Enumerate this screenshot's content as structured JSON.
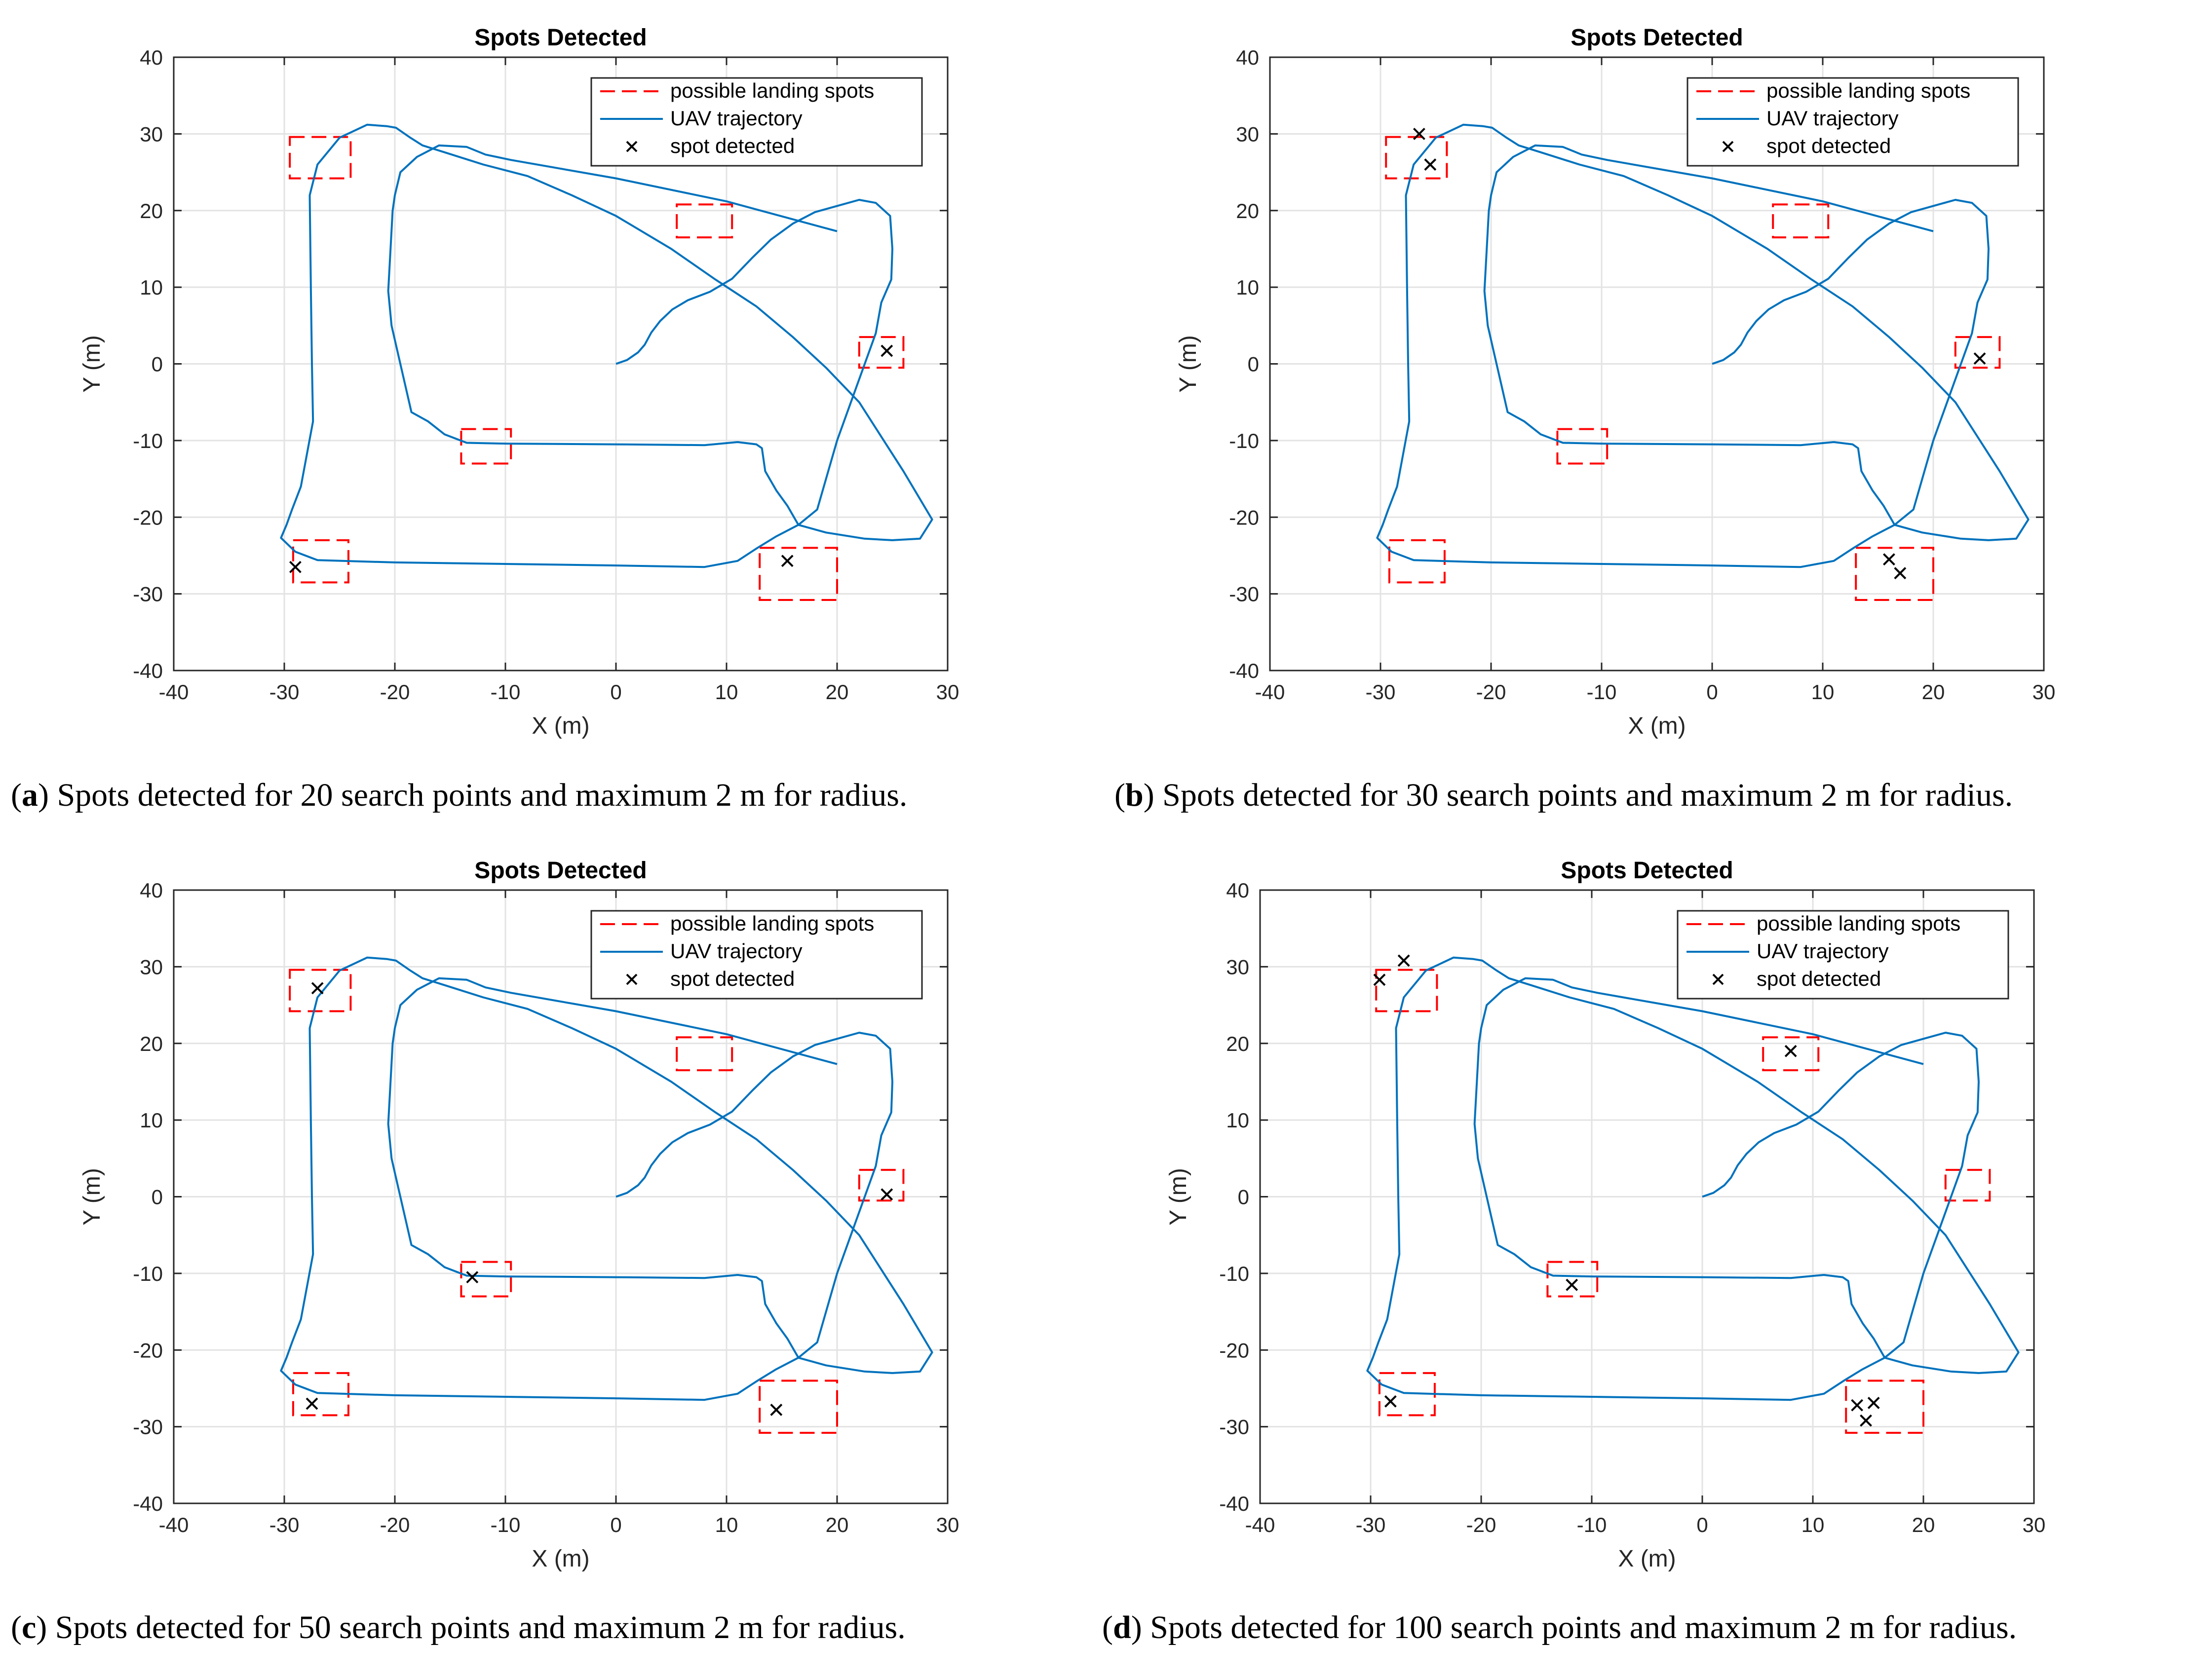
{
  "chart_data": [
    {
      "type": "line",
      "title": "Spots Detected",
      "xlabel": "X (m)",
      "ylabel": "Y (m)",
      "xlim": [
        -40,
        30
      ],
      "ylim": [
        -40,
        40
      ],
      "xticks": [
        -40,
        -30,
        -20,
        -10,
        0,
        10,
        20,
        30
      ],
      "yticks": [
        -40,
        -30,
        -20,
        -10,
        0,
        10,
        20,
        30,
        40
      ],
      "grid": true,
      "legend_position": "top-right",
      "legend": [
        "possible landing spots",
        "UAV trajectory",
        "spot detected"
      ],
      "series": [
        {
          "name": "possible landing spots",
          "kind": "rectangles",
          "color": "#ff0000"
        },
        {
          "name": "UAV trajectory",
          "kind": "line",
          "color": "#0072bd"
        },
        {
          "name": "spot detected",
          "kind": "markers",
          "color": "#000000",
          "points": [
            [
              -29,
              -26.5
            ],
            [
              24.5,
              1.7
            ],
            [
              15.5,
              -25.7
            ]
          ]
        }
      ],
      "caption_label": "a",
      "caption_text": "Spots detected for 20 search points and maximum 2 m for radius."
    },
    {
      "type": "line",
      "title": "Spots Detected",
      "xlabel": "X (m)",
      "ylabel": "Y (m)",
      "xlim": [
        -40,
        30
      ],
      "ylim": [
        -40,
        40
      ],
      "xticks": [
        -40,
        -30,
        -20,
        -10,
        0,
        10,
        20,
        30
      ],
      "yticks": [
        -40,
        -30,
        -20,
        -10,
        0,
        10,
        20,
        30,
        40
      ],
      "grid": true,
      "legend_position": "top-right",
      "legend": [
        "possible landing spots",
        "UAV trajectory",
        "spot detected"
      ],
      "series": [
        {
          "name": "possible landing spots",
          "kind": "rectangles",
          "color": "#ff0000"
        },
        {
          "name": "UAV trajectory",
          "kind": "line",
          "color": "#0072bd"
        },
        {
          "name": "spot detected",
          "kind": "markers",
          "color": "#000000",
          "points": [
            [
              -26.5,
              30
            ],
            [
              -25.5,
              26
            ],
            [
              24.2,
              0.7
            ],
            [
              16,
              -25.5
            ],
            [
              17,
              -27.3
            ]
          ]
        }
      ],
      "caption_label": "b",
      "caption_text": "Spots detected for 30 search points and maximum 2 m for radius."
    },
    {
      "type": "line",
      "title": "Spots Detected",
      "xlabel": "X (m)",
      "ylabel": "Y (m)",
      "xlim": [
        -40,
        30
      ],
      "ylim": [
        -40,
        40
      ],
      "xticks": [
        -40,
        -30,
        -20,
        -10,
        0,
        10,
        20,
        30
      ],
      "yticks": [
        -40,
        -30,
        -20,
        -10,
        0,
        10,
        20,
        30,
        40
      ],
      "grid": true,
      "legend_position": "top-right",
      "legend": [
        "possible landing spots",
        "UAV trajectory",
        "spot detected"
      ],
      "series": [
        {
          "name": "possible landing spots",
          "kind": "rectangles",
          "color": "#ff0000"
        },
        {
          "name": "UAV trajectory",
          "kind": "line",
          "color": "#0072bd"
        },
        {
          "name": "spot detected",
          "kind": "markers",
          "color": "#000000",
          "points": [
            [
              -27,
              27.2
            ],
            [
              -13,
              -10.5
            ],
            [
              24.5,
              0.3
            ],
            [
              -27.5,
              -27
            ],
            [
              14.5,
              -27.8
            ]
          ]
        }
      ],
      "caption_label": "c",
      "caption_text": "Spots detected for 50 search points and maximum 2 m for radius."
    },
    {
      "type": "line",
      "title": "Spots Detected",
      "xlabel": "X (m)",
      "ylabel": "Y (m)",
      "xlim": [
        -40,
        30
      ],
      "ylim": [
        -40,
        40
      ],
      "xticks": [
        -40,
        -30,
        -20,
        -10,
        0,
        10,
        20,
        30
      ],
      "yticks": [
        -40,
        -30,
        -20,
        -10,
        0,
        10,
        20,
        30,
        40
      ],
      "grid": true,
      "legend_position": "top-right",
      "legend": [
        "possible landing spots",
        "UAV trajectory",
        "spot detected"
      ],
      "series": [
        {
          "name": "possible landing spots",
          "kind": "rectangles",
          "color": "#ff0000"
        },
        {
          "name": "UAV trajectory",
          "kind": "line",
          "color": "#0072bd"
        },
        {
          "name": "spot detected",
          "kind": "markers",
          "color": "#000000",
          "points": [
            [
              -29.2,
              28.3
            ],
            [
              -27,
              30.8
            ],
            [
              8,
              19
            ],
            [
              -11.8,
              -11.5
            ],
            [
              -28.2,
              -26.7
            ],
            [
              14,
              -27.2
            ],
            [
              15.5,
              -26.9
            ],
            [
              14.8,
              -29.2
            ]
          ]
        }
      ],
      "caption_label": "d",
      "caption_text": "Spots detected for 100 search points and maximum 2 m for radius."
    }
  ],
  "landing_spots": [
    {
      "xmin": -29.5,
      "xmax": -24,
      "ymin": 24.2,
      "ymax": 29.6
    },
    {
      "xmin": 5.5,
      "xmax": 10.5,
      "ymin": 16.5,
      "ymax": 20.8
    },
    {
      "xmin": 22,
      "xmax": 26,
      "ymin": -0.5,
      "ymax": 3.5
    },
    {
      "xmin": -14,
      "xmax": -9.5,
      "ymin": -13,
      "ymax": -8.5
    },
    {
      "xmin": -29.2,
      "xmax": -24.2,
      "ymin": -28.5,
      "ymax": -23
    },
    {
      "xmin": 13,
      "xmax": 20,
      "ymin": -30.8,
      "ymax": -24
    }
  ],
  "trajectory": [
    [
      0,
      0
    ],
    [
      1,
      0.5
    ],
    [
      2,
      1.5
    ],
    [
      2.6,
      2.5
    ],
    [
      3.2,
      4.1
    ],
    [
      4,
      5.6
    ],
    [
      5.1,
      7.1
    ],
    [
      6.5,
      8.3
    ],
    [
      8.5,
      9.4
    ],
    [
      10.5,
      11.1
    ],
    [
      12.3,
      13.8
    ],
    [
      14,
      16.2
    ],
    [
      16,
      18.3
    ],
    [
      18,
      19.8
    ],
    [
      20,
      20.6
    ],
    [
      22,
      21.4
    ],
    [
      23.5,
      21
    ],
    [
      24.8,
      19.3
    ],
    [
      25,
      15
    ],
    [
      24.9,
      11
    ],
    [
      24,
      8
    ],
    [
      23.5,
      4
    ],
    [
      21.5,
      -4
    ],
    [
      20,
      -10
    ],
    [
      19,
      -15
    ],
    [
      18.2,
      -19
    ],
    [
      16.5,
      -21
    ],
    [
      14.5,
      -22.5
    ],
    [
      12.8,
      -24
    ],
    [
      11,
      -25.7
    ],
    [
      8,
      -26.5
    ],
    [
      0,
      -26.3
    ],
    [
      -10,
      -26.1
    ],
    [
      -20,
      -25.9
    ],
    [
      -27,
      -25.6
    ],
    [
      -29,
      -24.5
    ],
    [
      -30.3,
      -22.7
    ],
    [
      -29.8,
      -21
    ],
    [
      -29.3,
      -19
    ],
    [
      -28.5,
      -16
    ],
    [
      -27.4,
      -7.5
    ],
    [
      -27.5,
      0
    ],
    [
      -27.6,
      10
    ],
    [
      -27.7,
      22
    ],
    [
      -27,
      26
    ],
    [
      -25,
      29.5
    ],
    [
      -22.5,
      31.2
    ],
    [
      -20.7,
      31
    ],
    [
      -19.9,
      30.8
    ],
    [
      -18.6,
      29.5
    ],
    [
      -17.5,
      28.5
    ],
    [
      -15.5,
      27.6
    ],
    [
      -12,
      26
    ],
    [
      -8,
      24.5
    ],
    [
      -4,
      22
    ],
    [
      0,
      19.3
    ],
    [
      5,
      15
    ],
    [
      9,
      11
    ],
    [
      12.7,
      7.5
    ],
    [
      16,
      3.5
    ],
    [
      19,
      -0.5
    ],
    [
      22,
      -5
    ],
    [
      26,
      -14
    ],
    [
      28.6,
      -20.3
    ],
    [
      27.5,
      -22.8
    ],
    [
      25,
      -23
    ],
    [
      22.5,
      -22.8
    ],
    [
      19,
      -22
    ],
    [
      16.5,
      -21
    ],
    [
      15.5,
      -18.5
    ],
    [
      14.5,
      -16.5
    ],
    [
      13.5,
      -14
    ],
    [
      13.2,
      -11
    ],
    [
      12.7,
      -10.5
    ],
    [
      11,
      -10.2
    ],
    [
      8,
      -10.6
    ],
    [
      0,
      -10.5
    ],
    [
      -10,
      -10.4
    ],
    [
      -13.5,
      -10.3
    ],
    [
      -15.5,
      -9.2
    ],
    [
      -17,
      -7.5
    ],
    [
      -18.5,
      -6.3
    ],
    [
      -20.3,
      5
    ],
    [
      -20.6,
      9.5
    ],
    [
      -20.2,
      20
    ],
    [
      -20,
      22
    ],
    [
      -19.5,
      25
    ],
    [
      -18,
      27
    ],
    [
      -16,
      28.5
    ],
    [
      -13.5,
      28.3
    ],
    [
      -11.8,
      27.3
    ],
    [
      -9.5,
      26.6
    ],
    [
      0,
      24.2
    ],
    [
      10,
      21.2
    ],
    [
      20,
      17.3
    ]
  ]
}
